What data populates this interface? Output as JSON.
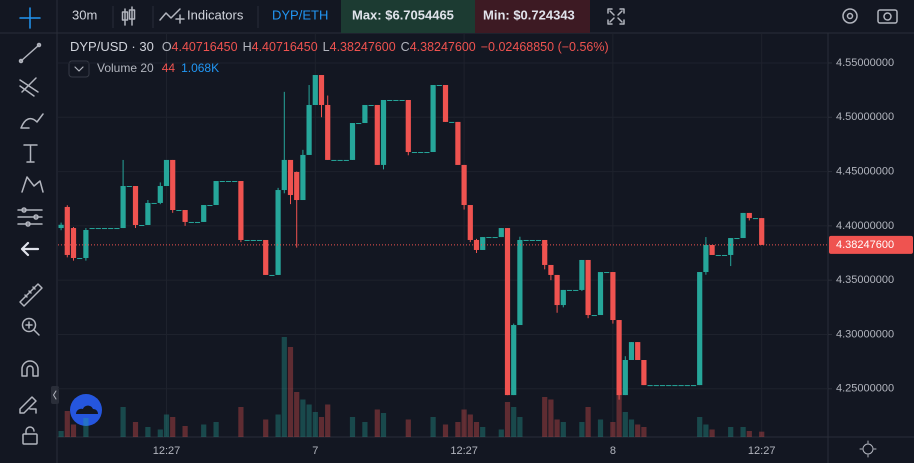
{
  "toolbar": {
    "interval": "30m",
    "indicators": "Indicators",
    "pair": "DYP/ETH",
    "max": "Max: $6.7054465",
    "min": "Min: $0.724343"
  },
  "legend": {
    "symbol": "DYP/USD · 30",
    "ohlc": [
      {
        "key": "O",
        "value": "4.40716450"
      },
      {
        "key": "H",
        "value": "4.40716450"
      },
      {
        "key": "L",
        "value": "4.38247600"
      },
      {
        "key": "C",
        "value": "4.38247600"
      }
    ],
    "change": "−0.02468850 (−0.56%)",
    "volume_name": "Volume 20",
    "volume_ma": "44",
    "volume_last": "1.068K"
  },
  "chart_data": {
    "type": "candlestick",
    "categories": [
      null,
      null,
      null,
      null,
      null,
      null,
      null,
      null,
      null,
      null,
      null,
      null,
      null,
      null,
      null,
      null,
      null,
      "12:27",
      null,
      null,
      null,
      null,
      null,
      null,
      null,
      null,
      null,
      null,
      null,
      null,
      null,
      null,
      null,
      null,
      null,
      null,
      null,
      null,
      null,
      null,
      null,
      "7",
      null,
      null,
      null,
      null,
      null,
      null,
      null,
      null,
      null,
      null,
      null,
      null,
      null,
      null,
      null,
      null,
      null,
      null,
      null,
      null,
      null,
      null,
      null,
      "12:27",
      null,
      null,
      null,
      null,
      null,
      null,
      null,
      null,
      null,
      null,
      null,
      null,
      null,
      null,
      null,
      null,
      null,
      null,
      null,
      null,
      null,
      null,
      null,
      "8",
      null,
      null,
      null,
      null,
      null,
      null,
      null,
      null,
      null,
      null,
      null,
      null,
      null,
      null,
      null,
      null,
      null,
      null,
      null,
      null,
      null,
      null,
      null,
      "12:27"
    ],
    "open": [
      4.398,
      4.4174,
      4.398,
      4.3704,
      4.3704,
      4.398,
      4.398,
      4.398,
      4.398,
      4.398,
      4.398,
      4.4367,
      4.4367,
      4.4008,
      4.4008,
      4.4211,
      4.4211,
      4.4367,
      4.4607,
      4.4146,
      4.4146,
      4.4036,
      4.4036,
      4.4036,
      4.4192,
      4.4192,
      4.4413,
      4.4413,
      4.4413,
      4.4413,
      4.387,
      4.387,
      4.387,
      4.387,
      4.3548,
      4.3548,
      4.433,
      4.4607,
      4.4496,
      4.4238,
      4.4653,
      4.5113,
      4.5389,
      4.5113,
      4.4607,
      4.4607,
      4.4607,
      4.4607,
      4.4947,
      4.4947,
      4.5113,
      4.5113,
      4.4561,
      4.5159,
      4.5159,
      4.5159,
      4.5159,
      4.468,
      4.468,
      4.468,
      4.468,
      4.5297,
      4.5297,
      4.4957,
      4.4957,
      4.4561,
      4.4192,
      4.387,
      4.3778,
      4.3897,
      4.3897,
      4.3897,
      4.398,
      4.2442,
      4.3087,
      4.387,
      4.387,
      4.387,
      4.387,
      4.364,
      4.3548,
      4.3271,
      4.341,
      4.341,
      4.341,
      4.3686,
      4.3179,
      4.3179,
      4.3575,
      4.3575,
      4.3133,
      4.2442,
      4.2765,
      4.293,
      4.2765,
      4.2534,
      4.2534,
      4.2534,
      4.2534,
      4.2534,
      4.2534,
      4.2534,
      4.2534,
      4.2534,
      4.3575,
      4.3824,
      4.3732,
      4.3732,
      4.3732,
      4.3888,
      4.3888,
      4.4119,
      4.40716,
      4.4071645
    ],
    "high": [
      4.403,
      4.419,
      4.399,
      4.3704,
      4.398,
      4.398,
      4.398,
      4.398,
      4.398,
      4.398,
      4.4607,
      4.4367,
      4.4367,
      4.4008,
      4.4238,
      4.4211,
      4.44,
      4.4607,
      4.4607,
      4.4146,
      4.4146,
      4.4036,
      4.4036,
      4.4192,
      4.4192,
      4.4413,
      4.4413,
      4.4413,
      4.4413,
      4.4413,
      4.387,
      4.387,
      4.387,
      4.387,
      4.3548,
      4.435,
      4.5234,
      4.4607,
      4.45,
      4.47,
      4.5297,
      4.5389,
      4.5389,
      4.52,
      4.4607,
      4.4607,
      4.4607,
      4.4947,
      4.4947,
      4.5113,
      4.5113,
      4.5113,
      4.5159,
      4.5159,
      4.5159,
      4.5159,
      4.5159,
      4.468,
      4.468,
      4.468,
      4.5297,
      4.5297,
      4.5297,
      4.4957,
      4.4957,
      4.4561,
      4.4192,
      4.388,
      4.3897,
      4.3897,
      4.3897,
      4.398,
      4.398,
      4.31,
      4.39,
      4.387,
      4.387,
      4.387,
      4.387,
      4.364,
      4.3548,
      4.341,
      4.341,
      4.341,
      4.3686,
      4.3686,
      4.3179,
      4.3575,
      4.3575,
      4.3575,
      4.3133,
      4.28,
      4.293,
      4.293,
      4.2765,
      4.2534,
      4.2534,
      4.2534,
      4.2534,
      4.2534,
      4.2534,
      4.2534,
      4.2534,
      4.3575,
      4.3897,
      4.3824,
      4.3732,
      4.3732,
      4.3888,
      4.3888,
      4.4119,
      4.4119,
      4.40716,
      4.4071645
    ],
    "low": [
      4.396,
      4.371,
      4.368,
      4.3704,
      4.368,
      4.398,
      4.398,
      4.398,
      4.398,
      4.398,
      4.398,
      4.4367,
      4.398,
      4.4008,
      4.4008,
      4.4211,
      4.42,
      4.4367,
      4.412,
      4.4146,
      4.4,
      4.4036,
      4.4036,
      4.4036,
      4.4192,
      4.4192,
      4.4413,
      4.4413,
      4.4413,
      4.385,
      4.387,
      4.387,
      4.387,
      4.3548,
      4.3548,
      4.3548,
      4.43,
      4.42,
      4.38,
      4.4238,
      4.4653,
      4.5113,
      4.5,
      4.4607,
      4.4607,
      4.4607,
      4.4607,
      4.4607,
      4.4947,
      4.4947,
      4.5113,
      4.4561,
      4.452,
      4.5159,
      4.5159,
      4.5159,
      4.465,
      4.468,
      4.468,
      4.468,
      4.468,
      4.5297,
      4.4957,
      4.4957,
      4.4561,
      4.415,
      4.385,
      4.375,
      4.3778,
      4.3897,
      4.3897,
      4.3897,
      4.2442,
      4.2442,
      4.3087,
      4.387,
      4.387,
      4.387,
      4.36,
      4.35,
      4.32,
      4.325,
      4.341,
      4.341,
      4.34,
      4.315,
      4.3179,
      4.3179,
      4.3575,
      4.31,
      4.24,
      4.2442,
      4.2765,
      4.2765,
      4.2534,
      4.2534,
      4.2534,
      4.2534,
      4.2534,
      4.2534,
      4.2534,
      4.2534,
      4.2534,
      4.2534,
      4.355,
      4.3732,
      4.3732,
      4.3732,
      4.363,
      4.3888,
      4.3888,
      4.405,
      4.40716,
      4.382476
    ],
    "close": [
      4.401,
      4.3732,
      4.3704,
      4.3704,
      4.3962,
      4.398,
      4.398,
      4.398,
      4.398,
      4.398,
      4.4367,
      4.4367,
      4.4008,
      4.4008,
      4.4211,
      4.4211,
      4.4367,
      4.4607,
      4.4146,
      4.4146,
      4.4036,
      4.4036,
      4.4036,
      4.4192,
      4.4192,
      4.4413,
      4.4413,
      4.4413,
      4.4413,
      4.387,
      4.387,
      4.387,
      4.387,
      4.3548,
      4.3548,
      4.433,
      4.4607,
      4.4284,
      4.4238,
      4.4653,
      4.5113,
      4.5389,
      4.5113,
      4.4607,
      4.4607,
      4.4607,
      4.4607,
      4.4947,
      4.4947,
      4.5113,
      4.5113,
      4.4561,
      4.5159,
      4.5159,
      4.5159,
      4.5159,
      4.468,
      4.468,
      4.468,
      4.468,
      4.5297,
      4.5297,
      4.4957,
      4.4957,
      4.4561,
      4.4192,
      4.387,
      4.3778,
      4.3897,
      4.3897,
      4.3897,
      4.398,
      4.2442,
      4.3087,
      4.387,
      4.387,
      4.387,
      4.387,
      4.364,
      4.3548,
      4.3271,
      4.341,
      4.341,
      4.341,
      4.3686,
      4.3179,
      4.3179,
      4.3575,
      4.3575,
      4.3133,
      4.2442,
      4.2765,
      4.293,
      4.2765,
      4.2534,
      4.2534,
      4.2534,
      4.2534,
      4.2534,
      4.2534,
      4.2534,
      4.2534,
      4.2534,
      4.3575,
      4.3824,
      4.3732,
      4.3732,
      4.3732,
      4.3888,
      4.3888,
      4.4119,
      4.40716,
      4.40716,
      4.382476
    ],
    "volume": [
      1200,
      5200,
      2500,
      0,
      3800,
      0,
      0,
      0,
      0,
      0,
      6000,
      0,
      3000,
      0,
      2000,
      0,
      1500,
      4500,
      4000,
      0,
      2200,
      0,
      0,
      2500,
      0,
      3000,
      0,
      0,
      0,
      6000,
      0,
      0,
      0,
      3500,
      0,
      4500,
      20000,
      18000,
      9000,
      7500,
      6500,
      5000,
      4000,
      6500,
      0,
      0,
      0,
      4000,
      0,
      3000,
      0,
      5500,
      4800,
      0,
      0,
      0,
      3500,
      0,
      0,
      0,
      4000,
      0,
      2500,
      0,
      3000,
      5500,
      4500,
      3000,
      2000,
      0,
      0,
      1500,
      7000,
      6000,
      4000,
      0,
      0,
      0,
      8000,
      7500,
      3500,
      3000,
      0,
      0,
      3000,
      6000,
      0,
      3500,
      0,
      3000,
      9000,
      5000,
      3500,
      2500,
      2000,
      0,
      0,
      0,
      0,
      0,
      0,
      0,
      0,
      4000,
      2500,
      1500,
      0,
      0,
      2000,
      0,
      2000,
      1200,
      0,
      1068
    ],
    "up_color": "#26a69a",
    "down_color": "#ef5350",
    "ylim": [
      4.2056,
      4.5739
    ],
    "yticks": [
      {
        "value": 4.25,
        "label": "4.25000000"
      },
      {
        "value": 4.3,
        "label": "4.30000000"
      },
      {
        "value": 4.35,
        "label": "4.35000000"
      },
      {
        "value": 4.4,
        "label": "4.40000000"
      },
      {
        "value": 4.45,
        "label": "4.45000000"
      },
      {
        "value": 4.5,
        "label": "4.50000000"
      },
      {
        "value": 4.55,
        "label": "4.55000000"
      }
    ],
    "volume_ylim": [
      0,
      40000
    ],
    "last_price": {
      "value": 4.382476,
      "label": "4.38247600"
    },
    "grid": true
  }
}
